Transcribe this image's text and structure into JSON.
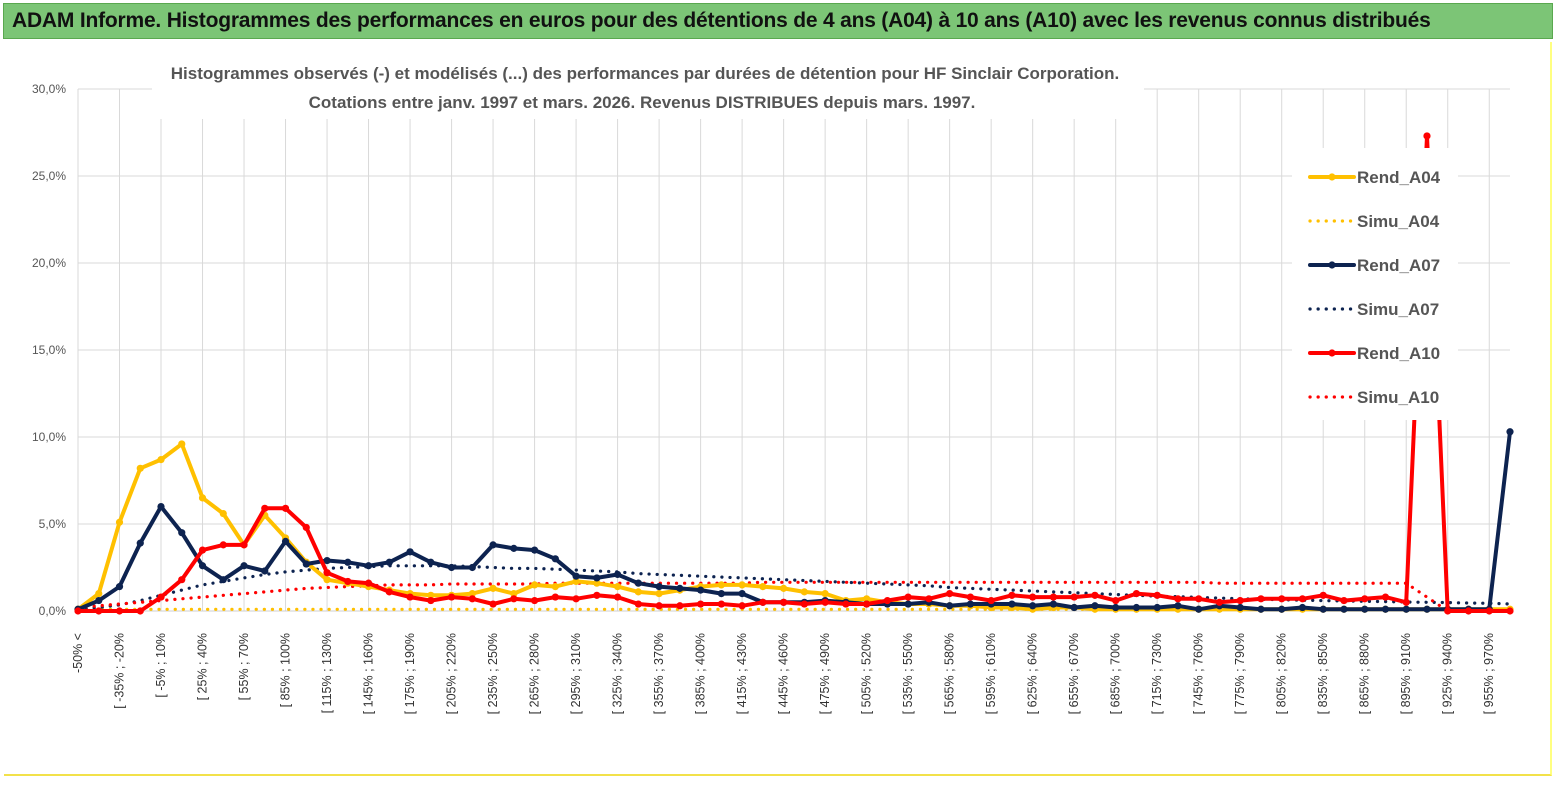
{
  "banner": {
    "title": "ADAM Informe. Histogrammes des performances en euros pour des détentions de 4 ans (A04) à 10 ans (A10) avec les revenus connus distribués"
  },
  "chart_data": {
    "type": "line",
    "title_line1": "Histogrammes observés (-)  et modélisés (...) des performances par durées de détention pour HF Sinclair Corporation.",
    "title_line2": "Cotations entre janv. 1997 et mars. 2026. Revenus DISTRIBUES depuis mars. 1997.",
    "ylim": [
      0,
      30
    ],
    "yticks": [
      "0,0%",
      "5,0%",
      "10,0%",
      "15,0%",
      "20,0%",
      "25,0%",
      "30,0%"
    ],
    "xticks": [
      "-50% <",
      "[ -35% ; -20%",
      "[ -5% ; 10%",
      "[ 25% ; 40%",
      "[ 55% ; 70%",
      "[ 85% ; 100%",
      "[ 115% ; 130%",
      "[ 145% ; 160%",
      "[ 175% ; 190%",
      "[ 205% ; 220%",
      "[ 235% ; 250%",
      "[ 265% ; 280%",
      "[ 295% ; 310%",
      "[ 325% ; 340%",
      "[ 355% ; 370%",
      "[ 385% ; 400%",
      "[ 415% ; 430%",
      "[ 445% ; 460%",
      "[ 475% ; 490%",
      "[ 505% ; 520%",
      "[ 535% ; 550%",
      "[ 565% ; 580%",
      "[ 595% ; 610%",
      "[ 625% ; 640%",
      "[ 655% ; 670%",
      "[ 685% ; 700%",
      "[ 715% ; 730%",
      "[ 745% ; 760%",
      "[ 775% ; 790%",
      "[ 805% ; 820%",
      "[ 835% ; 850%",
      "[ 865% ; 880%",
      "[ 895% ; 910%",
      "[ 925% ; 940%",
      "[ 955% ; 970%"
    ],
    "n_bins": 70,
    "series": [
      {
        "name": "Rend_A04",
        "style": "solid",
        "color": "#ffc000",
        "values": [
          0.1,
          1.0,
          5.1,
          8.2,
          8.7,
          9.6,
          6.5,
          5.6,
          3.8,
          5.5,
          4.2,
          2.8,
          1.8,
          1.6,
          1.4,
          1.2,
          1.0,
          0.9,
          0.9,
          1.0,
          1.3,
          1.0,
          1.5,
          1.4,
          1.7,
          1.6,
          1.4,
          1.1,
          1.0,
          1.2,
          1.4,
          1.5,
          1.5,
          1.4,
          1.3,
          1.1,
          1.0,
          0.6,
          0.7,
          0.5,
          0.4,
          0.4,
          0.3,
          0.3,
          0.2,
          0.2,
          0.1,
          0.2,
          0.2,
          0.1,
          0.1,
          0.1,
          0.1,
          0.1,
          0.1,
          0.1,
          0.1,
          0.1,
          0.1,
          0.1,
          0.1,
          0.1,
          0.1,
          0.1,
          0.1,
          0.1,
          0.1,
          0.1,
          0.1,
          0.1
        ]
      },
      {
        "name": "Simu_A04",
        "style": "dotted",
        "color": "#ffc000",
        "values": [
          0.1,
          0.1,
          0.1,
          0.1,
          0.1,
          0.1,
          0.1,
          0.1,
          0.1,
          0.1,
          0.1,
          0.1,
          0.1,
          0.1,
          0.1,
          0.1,
          0.1,
          0.1,
          0.1,
          0.1,
          0.1,
          0.1,
          0.1,
          0.1,
          0.1,
          0.1,
          0.1,
          0.1,
          0.1,
          0.1,
          0.1,
          0.1,
          0.1,
          0.1,
          0.1,
          0.1,
          0.1,
          0.1,
          0.1,
          0.1,
          0.1,
          0.1,
          0.1,
          0.1,
          0.1,
          0.1,
          0.1,
          0.1,
          0.1,
          0.1,
          0.1,
          0.1,
          0.1,
          0.1,
          0.1,
          0.1,
          0.1,
          0.1,
          0.1,
          0.1,
          0.1,
          0.1,
          0.1,
          0.1,
          0.1,
          0.1,
          0.1,
          0.1,
          0.1,
          0.1
        ]
      },
      {
        "name": "Rend_A07",
        "style": "solid",
        "color": "#0d2350",
        "values": [
          0.1,
          0.6,
          1.4,
          3.9,
          6.0,
          4.5,
          2.6,
          1.8,
          2.6,
          2.3,
          4.0,
          2.7,
          2.9,
          2.8,
          2.6,
          2.8,
          3.4,
          2.8,
          2.5,
          2.5,
          3.8,
          3.6,
          3.5,
          3.0,
          2.0,
          1.9,
          2.1,
          1.6,
          1.4,
          1.3,
          1.2,
          1.0,
          1.0,
          0.5,
          0.5,
          0.5,
          0.6,
          0.5,
          0.4,
          0.4,
          0.4,
          0.5,
          0.3,
          0.4,
          0.4,
          0.4,
          0.3,
          0.4,
          0.2,
          0.3,
          0.2,
          0.2,
          0.2,
          0.3,
          0.1,
          0.3,
          0.2,
          0.1,
          0.1,
          0.2,
          0.1,
          0.1,
          0.1,
          0.1,
          0.1,
          0.1,
          0.1,
          0.1,
          0.1,
          10.3
        ]
      },
      {
        "name": "Simu_A07",
        "style": "dotted",
        "color": "#0d2350",
        "values": [
          0.1,
          0.2,
          0.35,
          0.6,
          0.9,
          1.2,
          1.5,
          1.7,
          1.9,
          2.1,
          2.25,
          2.35,
          2.45,
          2.5,
          2.55,
          2.6,
          2.6,
          2.6,
          2.6,
          2.55,
          2.5,
          2.45,
          2.45,
          2.4,
          2.35,
          2.3,
          2.25,
          2.15,
          2.1,
          2.05,
          2.0,
          1.95,
          1.9,
          1.85,
          1.8,
          1.75,
          1.7,
          1.65,
          1.6,
          1.55,
          1.5,
          1.45,
          1.35,
          1.3,
          1.25,
          1.2,
          1.15,
          1.1,
          1.05,
          1.0,
          0.95,
          0.9,
          0.85,
          0.82,
          0.78,
          0.74,
          0.7,
          0.68,
          0.65,
          0.62,
          0.6,
          0.58,
          0.56,
          0.54,
          0.52,
          0.5,
          0.48,
          0.46,
          0.44,
          0.4
        ]
      },
      {
        "name": "Rend_A10",
        "style": "solid",
        "color": "#ff0000",
        "values": [
          0.0,
          0.0,
          0.0,
          0.0,
          0.8,
          1.8,
          3.5,
          3.8,
          3.8,
          5.9,
          5.9,
          4.8,
          2.2,
          1.7,
          1.6,
          1.1,
          0.8,
          0.6,
          0.8,
          0.7,
          0.4,
          0.7,
          0.6,
          0.8,
          0.7,
          0.9,
          0.8,
          0.4,
          0.3,
          0.3,
          0.4,
          0.4,
          0.3,
          0.5,
          0.5,
          0.4,
          0.5,
          0.4,
          0.4,
          0.6,
          0.8,
          0.7,
          1.0,
          0.8,
          0.6,
          0.9,
          0.8,
          0.8,
          0.8,
          0.9,
          0.6,
          1.0,
          0.9,
          0.7,
          0.7,
          0.5,
          0.6,
          0.7,
          0.7,
          0.7,
          0.9,
          0.6,
          0.7,
          0.8,
          0.5,
          27.3,
          0.0,
          0.0,
          0.0,
          0.0
        ]
      },
      {
        "name": "Simu_A10",
        "style": "dotted",
        "color": "#ff0000",
        "values": [
          0.2,
          0.3,
          0.4,
          0.5,
          0.6,
          0.7,
          0.8,
          0.9,
          1.0,
          1.1,
          1.2,
          1.3,
          1.35,
          1.4,
          1.45,
          1.5,
          1.5,
          1.5,
          1.55,
          1.55,
          1.55,
          1.55,
          1.55,
          1.6,
          1.6,
          1.6,
          1.6,
          1.6,
          1.6,
          1.6,
          1.6,
          1.6,
          1.6,
          1.65,
          1.65,
          1.65,
          1.65,
          1.65,
          1.65,
          1.65,
          1.65,
          1.65,
          1.65,
          1.65,
          1.65,
          1.65,
          1.65,
          1.65,
          1.65,
          1.65,
          1.65,
          1.65,
          1.65,
          1.65,
          1.65,
          1.6,
          1.6,
          1.6,
          1.6,
          1.6,
          1.6,
          1.6,
          1.6,
          1.6,
          1.6,
          0.8,
          0.0,
          0.0,
          0.0,
          0.0
        ]
      }
    ]
  }
}
